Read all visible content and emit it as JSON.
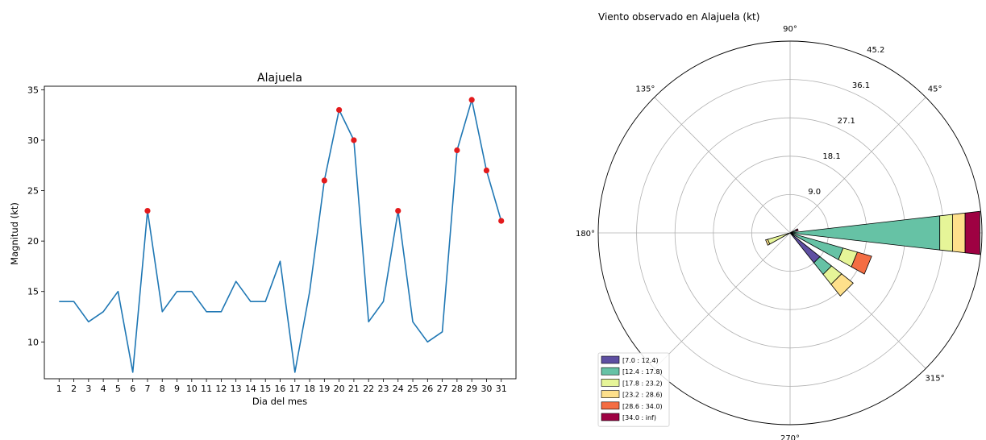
{
  "chart_data": [
    {
      "type": "line",
      "title": "Alajuela",
      "xlabel": "Dia del mes",
      "ylabel": "Magnitud (kt)",
      "x": [
        1,
        2,
        3,
        4,
        5,
        6,
        7,
        8,
        9,
        10,
        11,
        12,
        13,
        14,
        15,
        16,
        17,
        18,
        19,
        20,
        21,
        22,
        23,
        24,
        25,
        26,
        27,
        28,
        29,
        30,
        31
      ],
      "values": [
        14,
        14,
        12,
        13,
        15,
        7,
        23,
        13,
        15,
        15,
        13,
        13,
        16,
        14,
        14,
        18,
        7,
        15,
        26,
        33,
        30,
        12,
        14,
        23,
        12,
        10,
        11,
        29,
        34,
        27,
        22
      ],
      "highlight_days": [
        7,
        19,
        20,
        21,
        24,
        28,
        29,
        30,
        31
      ],
      "ylim": [
        6.35,
        35.35
      ],
      "yticks": [
        10,
        15,
        20,
        25,
        30,
        35
      ],
      "line_color": "#1f77b4",
      "marker_color": "#e31a1c"
    },
    {
      "type": "windrose",
      "title": "Viento observado en Alajuela (kt)",
      "angle_labels": [
        {
          "angle": 0,
          "label": ""
        },
        {
          "angle": 45,
          "label": "45°"
        },
        {
          "angle": 90,
          "label": "90°"
        },
        {
          "angle": 135,
          "label": "135°"
        },
        {
          "angle": 180,
          "label": "180°"
        },
        {
          "angle": 225,
          "label": ""
        },
        {
          "angle": 270,
          "label": "270°"
        },
        {
          "angle": 315,
          "label": "315°"
        }
      ],
      "radial_ticks": [
        "9.0",
        "18.1",
        "27.1",
        "36.1",
        "45.2"
      ],
      "rmax": 45.2,
      "bins": [
        {
          "label": "[7.0 : 12.4)",
          "color": "#5e4fa2"
        },
        {
          "label": "[12.4 : 17.8)",
          "color": "#66c2a5"
        },
        {
          "label": "[17.8 : 23.2)",
          "color": "#e6f598"
        },
        {
          "label": "[23.2 : 28.6)",
          "color": "#fee08b"
        },
        {
          "label": "[28.6 : 34.0)",
          "color": "#f46d43"
        },
        {
          "label": "[34.0 : inf)",
          "color": "#9e0142"
        }
      ],
      "directions": [
        {
          "angle": 0,
          "segments": [
            0,
            35.5,
            3.0,
            3.0,
            0,
            3.5
          ]
        },
        {
          "angle": 22.5,
          "segments": [
            0,
            1.5,
            0,
            0,
            0,
            0.5
          ]
        },
        {
          "angle": 202.5,
          "segments": [
            0,
            0,
            5.5,
            0.5,
            0,
            0
          ]
        },
        {
          "angle": 337.5,
          "segments": [
            0,
            13.0,
            3.5,
            0,
            3.5,
            0
          ]
        },
        {
          "angle": 315,
          "segments": [
            9.0,
            3.5,
            3.0,
            3.5,
            0,
            0
          ]
        }
      ]
    }
  ]
}
